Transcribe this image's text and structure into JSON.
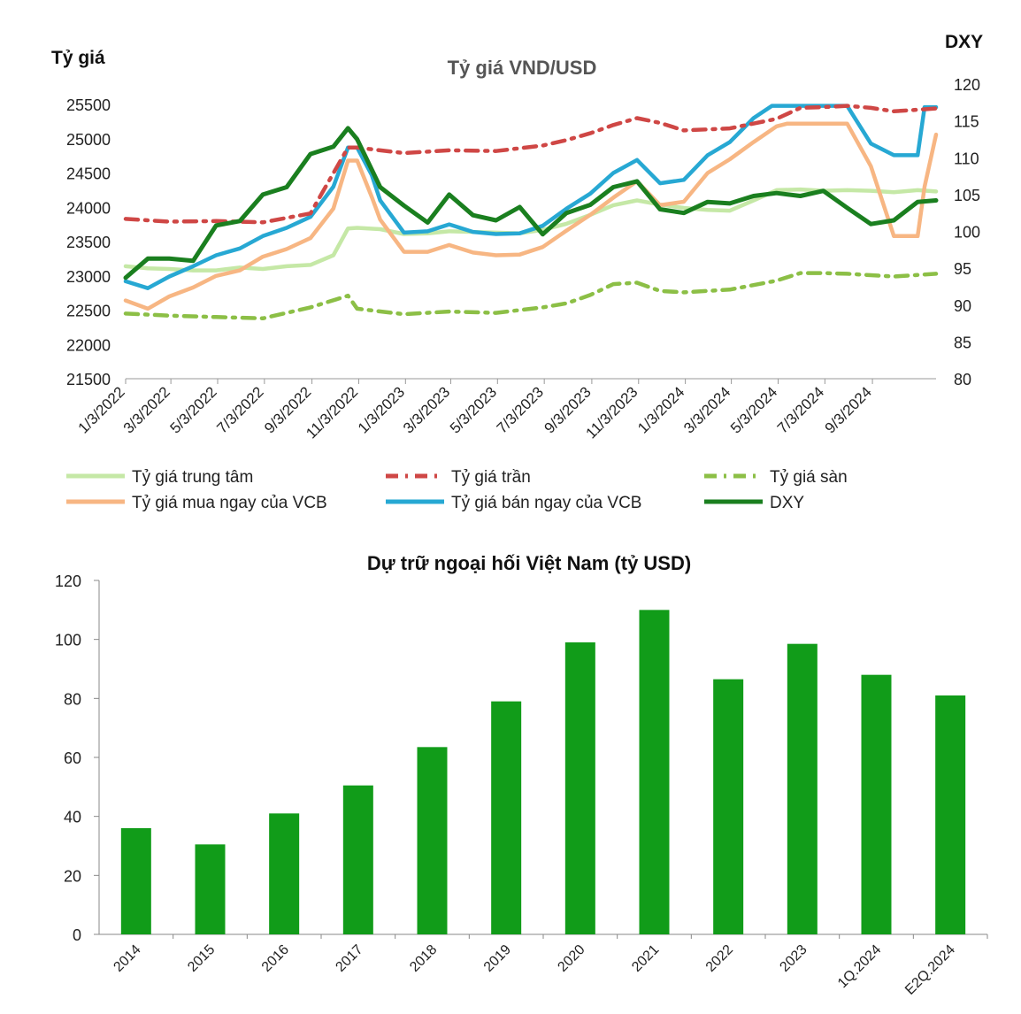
{
  "chart_data": [
    {
      "type": "line",
      "title": "Tỷ giá VND/USD",
      "ylabel_left": "Tỷ giá",
      "ylabel_right": "DXY",
      "x_range": [
        "2022-01-03",
        "2024-11-25"
      ],
      "x_tick_labels": [
        "1/3/2022",
        "3/3/2022",
        "5/3/2022",
        "7/3/2022",
        "9/3/2022",
        "11/3/2022",
        "1/3/2023",
        "3/3/2023",
        "5/3/2023",
        "7/3/2023",
        "9/3/2023",
        "11/3/2023",
        "1/3/2024",
        "3/3/2024",
        "5/3/2024",
        "7/3/2024",
        "9/3/2024"
      ],
      "ylim_left": [
        21500,
        25500
      ],
      "y_ticks_left": [
        "25500",
        "25000",
        "24500",
        "24000",
        "23500",
        "23000",
        "22500",
        "22000",
        "21500"
      ],
      "ylim_right": [
        80,
        120
      ],
      "y_ticks_right": [
        "120",
        "115",
        "110",
        "105",
        "100",
        "95",
        "90",
        "85",
        "80"
      ],
      "legend_position": "bottom",
      "series": [
        {
          "name": "Tỷ giá trung tâm",
          "axis": "left",
          "color": "#c5e8a6",
          "style": "solid",
          "x": [
            "2022-01-03",
            "2022-02-01",
            "2022-03-01",
            "2022-04-01",
            "2022-05-01",
            "2022-06-01",
            "2022-07-01",
            "2022-08-01",
            "2022-09-01",
            "2022-10-01",
            "2022-10-20",
            "2022-11-01",
            "2022-12-01",
            "2023-01-01",
            "2023-02-01",
            "2023-03-01",
            "2023-04-01",
            "2023-05-01",
            "2023-06-01",
            "2023-07-01",
            "2023-08-01",
            "2023-09-01",
            "2023-10-01",
            "2023-11-01",
            "2023-12-01",
            "2024-01-01",
            "2024-02-01",
            "2024-03-01",
            "2024-04-01",
            "2024-05-01",
            "2024-06-01",
            "2024-07-01",
            "2024-08-01",
            "2024-09-01",
            "2024-10-01",
            "2024-11-01",
            "2024-11-25"
          ],
          "y": [
            23140,
            23110,
            23100,
            23080,
            23080,
            23120,
            23100,
            23140,
            23160,
            23300,
            23690,
            23700,
            23680,
            23610,
            23620,
            23650,
            23640,
            23630,
            23620,
            23670,
            23760,
            23890,
            24030,
            24100,
            24040,
            23990,
            23960,
            23950,
            24100,
            24250,
            24260,
            24240,
            24250,
            24240,
            24220,
            24250,
            24230
          ]
        },
        {
          "name": "Tỷ giá trần",
          "axis": "left",
          "color": "#cf4745",
          "style": "dashdot",
          "x": [
            "2022-01-03",
            "2022-03-01",
            "2022-05-01",
            "2022-07-01",
            "2022-09-01",
            "2022-10-20",
            "2022-11-01",
            "2023-01-01",
            "2023-03-01",
            "2023-05-01",
            "2023-07-01",
            "2023-08-01",
            "2023-09-01",
            "2023-10-01",
            "2023-11-01",
            "2023-12-01",
            "2024-01-01",
            "2024-03-01",
            "2024-05-01",
            "2024-06-01",
            "2024-07-01",
            "2024-08-01",
            "2024-09-01",
            "2024-10-01",
            "2024-11-25"
          ],
          "y": [
            23830,
            23790,
            23800,
            23780,
            23910,
            24870,
            24870,
            24790,
            24830,
            24820,
            24900,
            24980,
            25080,
            25200,
            25300,
            25230,
            25120,
            25150,
            25290,
            25450,
            25460,
            25480,
            25450,
            25400,
            25440
          ]
        },
        {
          "name": "Tỷ giá sàn",
          "axis": "left",
          "color": "#8cbf46",
          "style": "dashdot",
          "x": [
            "2022-01-03",
            "2022-03-01",
            "2022-05-01",
            "2022-07-01",
            "2022-09-01",
            "2022-10-20",
            "2022-11-01",
            "2023-01-01",
            "2023-03-01",
            "2023-05-01",
            "2023-07-01",
            "2023-08-01",
            "2023-09-01",
            "2023-10-01",
            "2023-11-01",
            "2023-12-01",
            "2024-01-01",
            "2024-03-01",
            "2024-05-01",
            "2024-06-01",
            "2024-07-01",
            "2024-08-01",
            "2024-09-01",
            "2024-10-01",
            "2024-11-25"
          ],
          "y": [
            22450,
            22420,
            22400,
            22380,
            22540,
            22710,
            22520,
            22440,
            22480,
            22460,
            22540,
            22600,
            22720,
            22880,
            22900,
            22780,
            22760,
            22800,
            22930,
            23040,
            23040,
            23030,
            23010,
            22990,
            23030
          ]
        },
        {
          "name": "Tỷ giá mua ngay của VCB",
          "axis": "left",
          "color": "#f7b683",
          "style": "solid",
          "x": [
            "2022-01-03",
            "2022-02-01",
            "2022-03-01",
            "2022-04-01",
            "2022-05-01",
            "2022-06-01",
            "2022-07-01",
            "2022-08-01",
            "2022-09-01",
            "2022-10-01",
            "2022-10-20",
            "2022-11-01",
            "2022-11-20",
            "2022-12-01",
            "2023-01-01",
            "2023-02-01",
            "2023-03-01",
            "2023-04-01",
            "2023-05-01",
            "2023-06-01",
            "2023-07-01",
            "2023-08-01",
            "2023-09-01",
            "2023-10-01",
            "2023-11-01",
            "2023-12-01",
            "2024-01-01",
            "2024-02-01",
            "2024-03-01",
            "2024-04-01",
            "2024-05-01",
            "2024-05-15",
            "2024-06-01",
            "2024-07-01",
            "2024-08-01",
            "2024-09-01",
            "2024-10-01",
            "2024-11-01",
            "2024-11-10",
            "2024-11-25"
          ],
          "y": [
            22640,
            22520,
            22700,
            22830,
            23000,
            23080,
            23280,
            23390,
            23550,
            23980,
            24680,
            24680,
            24150,
            23820,
            23350,
            23350,
            23450,
            23340,
            23300,
            23310,
            23420,
            23660,
            23890,
            24140,
            24380,
            24030,
            24080,
            24500,
            24700,
            24950,
            25180,
            25220,
            25220,
            25220,
            25220,
            24600,
            23580,
            23580,
            24300,
            25060
          ]
        },
        {
          "name": "Tỷ giá bán ngay của VCB",
          "axis": "left",
          "color": "#27a8d3",
          "style": "solid",
          "x": [
            "2022-01-03",
            "2022-02-01",
            "2022-03-01",
            "2022-04-01",
            "2022-05-01",
            "2022-06-01",
            "2022-07-01",
            "2022-08-01",
            "2022-09-01",
            "2022-10-01",
            "2022-10-20",
            "2022-11-01",
            "2022-11-20",
            "2022-12-01",
            "2023-01-01",
            "2023-02-01",
            "2023-03-01",
            "2023-04-01",
            "2023-05-01",
            "2023-06-01",
            "2023-07-01",
            "2023-08-01",
            "2023-09-01",
            "2023-10-01",
            "2023-11-01",
            "2023-12-01",
            "2024-01-01",
            "2024-02-01",
            "2024-03-01",
            "2024-04-01",
            "2024-04-25",
            "2024-05-01",
            "2024-06-01",
            "2024-07-01",
            "2024-08-01",
            "2024-09-01",
            "2024-10-01",
            "2024-11-01",
            "2024-11-10",
            "2024-11-25"
          ],
          "y": [
            22920,
            22820,
            22990,
            23140,
            23300,
            23400,
            23580,
            23700,
            23860,
            24300,
            24870,
            24870,
            24470,
            24100,
            23630,
            23650,
            23750,
            23640,
            23610,
            23620,
            23730,
            23980,
            24200,
            24500,
            24690,
            24350,
            24400,
            24760,
            24950,
            25300,
            25480,
            25480,
            25480,
            25480,
            25480,
            24930,
            24760,
            24760,
            25460,
            25460
          ]
        },
        {
          "name": "DXY",
          "axis": "right",
          "color": "#1a7f1f",
          "style": "solid",
          "x": [
            "2022-01-03",
            "2022-02-01",
            "2022-03-01",
            "2022-04-01",
            "2022-05-01",
            "2022-06-01",
            "2022-07-01",
            "2022-08-01",
            "2022-09-01",
            "2022-10-01",
            "2022-10-20",
            "2022-11-01",
            "2022-12-01",
            "2023-01-01",
            "2023-02-01",
            "2023-03-01",
            "2023-04-01",
            "2023-05-01",
            "2023-06-01",
            "2023-07-01",
            "2023-08-01",
            "2023-09-01",
            "2023-10-01",
            "2023-11-01",
            "2023-12-01",
            "2024-01-01",
            "2024-02-01",
            "2024-03-01",
            "2024-04-01",
            "2024-05-01",
            "2024-06-01",
            "2024-07-01",
            "2024-08-01",
            "2024-09-01",
            "2024-10-01",
            "2024-11-01",
            "2024-11-25"
          ],
          "y": [
            93.7,
            96.3,
            96.3,
            96.0,
            100.8,
            101.4,
            105.0,
            106.0,
            110.5,
            111.5,
            114.0,
            112.5,
            106.0,
            103.5,
            101.2,
            105.0,
            102.2,
            101.5,
            103.3,
            99.6,
            102.5,
            103.6,
            106.0,
            106.8,
            103.0,
            102.5,
            104.0,
            103.8,
            104.8,
            105.2,
            104.8,
            105.5,
            103.2,
            101.0,
            101.5,
            104.0,
            104.2
          ]
        }
      ]
    },
    {
      "type": "bar",
      "title": "Dự trữ ngoại hối Việt Nam (tỷ USD)",
      "categories": [
        "2014",
        "2015",
        "2016",
        "2017",
        "2018",
        "2019",
        "2020",
        "2021",
        "2022",
        "2023",
        "1Q.2024",
        "E2Q.2024"
      ],
      "values": [
        36.0,
        30.5,
        41.0,
        50.5,
        63.5,
        79.0,
        99.0,
        110.0,
        86.5,
        98.5,
        88.0,
        81.0
      ],
      "ylim": [
        0,
        120
      ],
      "y_ticks": [
        "0",
        "20",
        "40",
        "60",
        "80",
        "100",
        "120"
      ],
      "bar_color": "#119c19",
      "grid": false
    }
  ]
}
